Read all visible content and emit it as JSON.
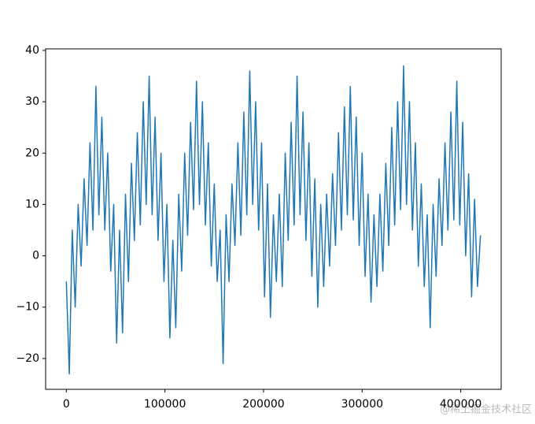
{
  "chart_data": {
    "type": "line",
    "x": [
      0,
      3000,
      6000,
      9000,
      12000,
      15000,
      18000,
      21000,
      24000,
      27000,
      30000,
      33000,
      36000,
      39000,
      42000,
      45000,
      48000,
      51000,
      54000,
      57000,
      60000,
      63000,
      66000,
      69000,
      72000,
      75000,
      78000,
      81000,
      84000,
      87000,
      90000,
      93000,
      96000,
      99000,
      102000,
      105000,
      108000,
      111000,
      114000,
      117000,
      120000,
      123000,
      126000,
      129000,
      132000,
      135000,
      138000,
      141000,
      144000,
      147000,
      150000,
      153000,
      156000,
      159000,
      162000,
      165000,
      168000,
      171000,
      174000,
      177000,
      180000,
      183000,
      186000,
      189000,
      192000,
      195000,
      198000,
      201000,
      204000,
      207000,
      210000,
      213000,
      216000,
      219000,
      222000,
      225000,
      228000,
      231000,
      234000,
      237000,
      240000,
      243000,
      246000,
      249000,
      252000,
      255000,
      258000,
      261000,
      264000,
      267000,
      270000,
      273000,
      276000,
      279000,
      282000,
      285000,
      288000,
      291000,
      294000,
      297000,
      300000,
      303000,
      306000,
      309000,
      312000,
      315000,
      318000,
      321000,
      324000,
      327000,
      330000,
      333000,
      336000,
      339000,
      342000,
      345000,
      348000,
      351000,
      354000,
      357000,
      360000,
      363000,
      366000,
      369000,
      372000,
      375000,
      378000,
      381000,
      384000,
      387000,
      390000,
      393000,
      396000,
      399000,
      402000,
      405000,
      408000,
      411000,
      414000,
      417000,
      420000
    ],
    "series": [
      {
        "color": "#1f77b4",
        "values": [
          -5,
          -23,
          5,
          -10,
          10,
          -2,
          15,
          2,
          22,
          5,
          33,
          8,
          27,
          5,
          20,
          -3,
          10,
          -17,
          5,
          -15,
          12,
          -5,
          18,
          3,
          24,
          6,
          30,
          10,
          35,
          8,
          27,
          3,
          20,
          -5,
          10,
          -16,
          3,
          -14,
          12,
          -3,
          20,
          4,
          26,
          9,
          34,
          10,
          30,
          6,
          22,
          -2,
          14,
          -5,
          5,
          -21,
          8,
          -5,
          14,
          2,
          22,
          4,
          28,
          8,
          36,
          10,
          30,
          5,
          22,
          -8,
          14,
          -12,
          8,
          -5,
          12,
          -6,
          20,
          3,
          26,
          6,
          35,
          8,
          28,
          3,
          22,
          -4,
          15,
          -10,
          10,
          -6,
          12,
          -2,
          16,
          2,
          24,
          5,
          29,
          8,
          33,
          7,
          27,
          2,
          20,
          -4,
          12,
          -9,
          8,
          -6,
          12,
          -3,
          18,
          2,
          25,
          6,
          30,
          9,
          37,
          10,
          30,
          5,
          22,
          -2,
          14,
          -6,
          8,
          -14,
          10,
          -4,
          15,
          2,
          22,
          5,
          28,
          7,
          34,
          6,
          26,
          0,
          16,
          -8,
          11,
          -6,
          4
        ]
      }
    ],
    "xlim": [
      -21000,
      441000
    ],
    "ylim": [
      -26,
      40.3
    ],
    "xticks": [
      0,
      100000,
      200000,
      300000,
      400000
    ],
    "yticks": [
      {
        "value": -20,
        "label": "−20"
      },
      {
        "value": -10,
        "label": "−10"
      },
      0,
      10,
      20,
      30,
      40
    ],
    "annotation": "@稀土掘金技术社区"
  }
}
